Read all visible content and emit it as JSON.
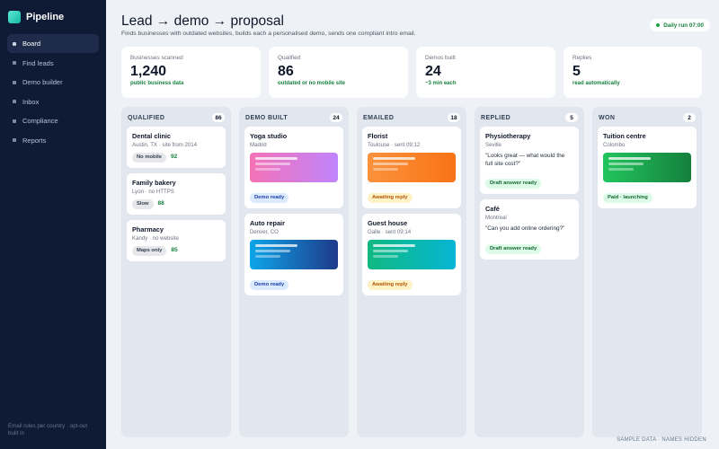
{
  "app": {
    "name": "Pipeline"
  },
  "sidebar": {
    "items": [
      {
        "label": "Board",
        "active": true
      },
      {
        "label": "Find leads",
        "active": false
      },
      {
        "label": "Demo builder",
        "active": false
      },
      {
        "label": "Inbox",
        "active": false
      },
      {
        "label": "Compliance",
        "active": false
      },
      {
        "label": "Reports",
        "active": false
      }
    ],
    "footer": "Email rules per country · opt-out built in"
  },
  "header": {
    "title": "Lead → demo → proposal",
    "subtitle": "Finds businesses with outdated websites, builds each a personalised demo, sends one compliant intro email.",
    "run_status": "Daily run 07:00"
  },
  "stats": [
    {
      "label": "Businesses scanned",
      "value": "1,240",
      "note": "public business data"
    },
    {
      "label": "Qualified",
      "value": "86",
      "note": "outdated or no mobile site"
    },
    {
      "label": "Demos built",
      "value": "24",
      "note": "~3 min each"
    },
    {
      "label": "Replies",
      "value": "5",
      "note": "read automatically"
    }
  ],
  "columns": [
    {
      "title": "QUALIFIED",
      "count": "86",
      "cards": [
        {
          "title": "Dental clinic",
          "sub": "Austin, TX · site from 2014",
          "badge": "No mobile",
          "score": "92"
        },
        {
          "title": "Family bakery",
          "sub": "Lyon · no HTTPS",
          "badge": "Slow",
          "score": "88"
        },
        {
          "title": "Pharmacy",
          "sub": "Kandy · no website",
          "badge": "Maps only",
          "score": "85"
        }
      ]
    },
    {
      "title": "DEMO BUILT",
      "count": "24",
      "cards": [
        {
          "title": "Yoga studio",
          "sub": "Madrid",
          "badge": "Demo ready"
        },
        {
          "title": "Auto repair",
          "sub": "Denver, CO",
          "badge": "Demo ready"
        }
      ]
    },
    {
      "title": "EMAILED",
      "count": "18",
      "cards": [
        {
          "title": "Florist",
          "sub": "Toulouse · sent 09:12",
          "badge": "Awaiting reply"
        },
        {
          "title": "Guest house",
          "sub": "Galle · sent 09:14",
          "badge": "Awaiting reply"
        }
      ]
    },
    {
      "title": "REPLIED",
      "count": "5",
      "cards": [
        {
          "title": "Physiotherapy",
          "sub": "Seville",
          "quote": "\"Looks great — what would the full site cost?\"",
          "badge": "Draft answer ready"
        },
        {
          "title": "Café",
          "sub": "Montreal",
          "quote": "\"Can you add online ordering?\"",
          "badge": "Draft answer ready"
        }
      ]
    },
    {
      "title": "WON",
      "count": "2",
      "cards": [
        {
          "title": "Tuition centre",
          "sub": "Colombo",
          "badge": "Paid · launching"
        }
      ]
    }
  ],
  "colors": {
    "sidebar_bg": "#0f1b35",
    "accent_green": "#15803d",
    "thumb_yoga": "linear pink-purple",
    "thumb_auto": "linear blue",
    "thumb_florist": "linear orange",
    "thumb_guesthouse": "linear teal",
    "thumb_tuition": "linear green"
  },
  "footer": "SAMPLE DATA · NAMES HIDDEN"
}
